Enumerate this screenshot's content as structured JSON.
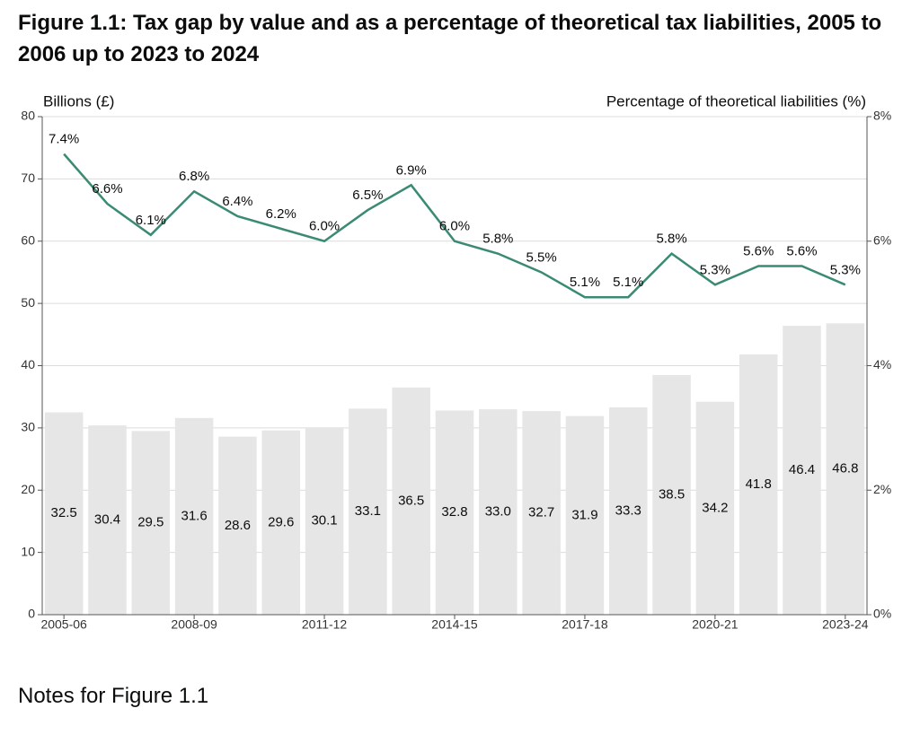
{
  "chart_data": {
    "type": "bar",
    "title": "Figure 1.1: Tax gap by value and as a percentage of theoretical tax liabilities, 2005 to 2006 up to 2023 to 2024",
    "y_label": "Billions (£)",
    "y2_label": "Percentage of theoretical liabilities (%)",
    "categories": [
      "2005-06",
      null,
      null,
      "2008-09",
      null,
      null,
      "2011-12",
      null,
      null,
      "2014-15",
      null,
      null,
      "2017-18",
      null,
      null,
      "2020-21",
      null,
      null,
      "2023-24"
    ],
    "series": [
      {
        "type": "bar",
        "color": "#e6e6e6",
        "values": [
          32.5,
          30.4,
          29.5,
          31.6,
          28.6,
          29.6,
          30.1,
          33.1,
          36.5,
          32.8,
          33.0,
          32.7,
          31.9,
          33.3,
          38.5,
          34.2,
          41.8,
          46.4,
          46.8
        ],
        "value_labels": [
          "32.5",
          "30.4",
          "29.5",
          "31.6",
          "28.6",
          "29.6",
          "30.1",
          "33.1",
          "36.5",
          "32.8",
          "33.0",
          "32.7",
          "31.9",
          "33.3",
          "38.5",
          "34.2",
          "41.8",
          "46.4",
          "46.8"
        ]
      },
      {
        "type": "line",
        "axis": "y2",
        "color": "#3a8a74",
        "values": [
          7.4,
          6.6,
          6.1,
          6.8,
          6.4,
          6.2,
          6.0,
          6.5,
          6.9,
          6.0,
          5.8,
          5.5,
          5.1,
          5.1,
          5.8,
          5.3,
          5.6,
          5.6,
          5.3
        ],
        "value_labels": [
          "7.4%",
          "6.6%",
          "6.1%",
          "6.8%",
          "6.4%",
          "6.2%",
          "6.0%",
          "6.5%",
          "6.9%",
          "6.0%",
          "5.8%",
          "5.5%",
          "5.1%",
          "5.1%",
          "5.8%",
          "5.3%",
          "5.6%",
          "5.6%",
          "5.3%"
        ]
      }
    ],
    "ylim": [
      0,
      80
    ],
    "yticks": [
      0,
      10,
      20,
      30,
      40,
      50,
      60,
      70,
      80
    ],
    "y2lim": [
      0,
      8
    ],
    "y2ticks": [
      {
        "value": 0,
        "label": "0%"
      },
      {
        "value": 2,
        "label": "2%"
      },
      {
        "value": 4,
        "label": "4%"
      },
      {
        "value": 6,
        "label": "6%"
      },
      {
        "value": 8,
        "label": "8%"
      }
    ],
    "grid": true
  },
  "notes_heading": "Notes for Figure 1.1"
}
